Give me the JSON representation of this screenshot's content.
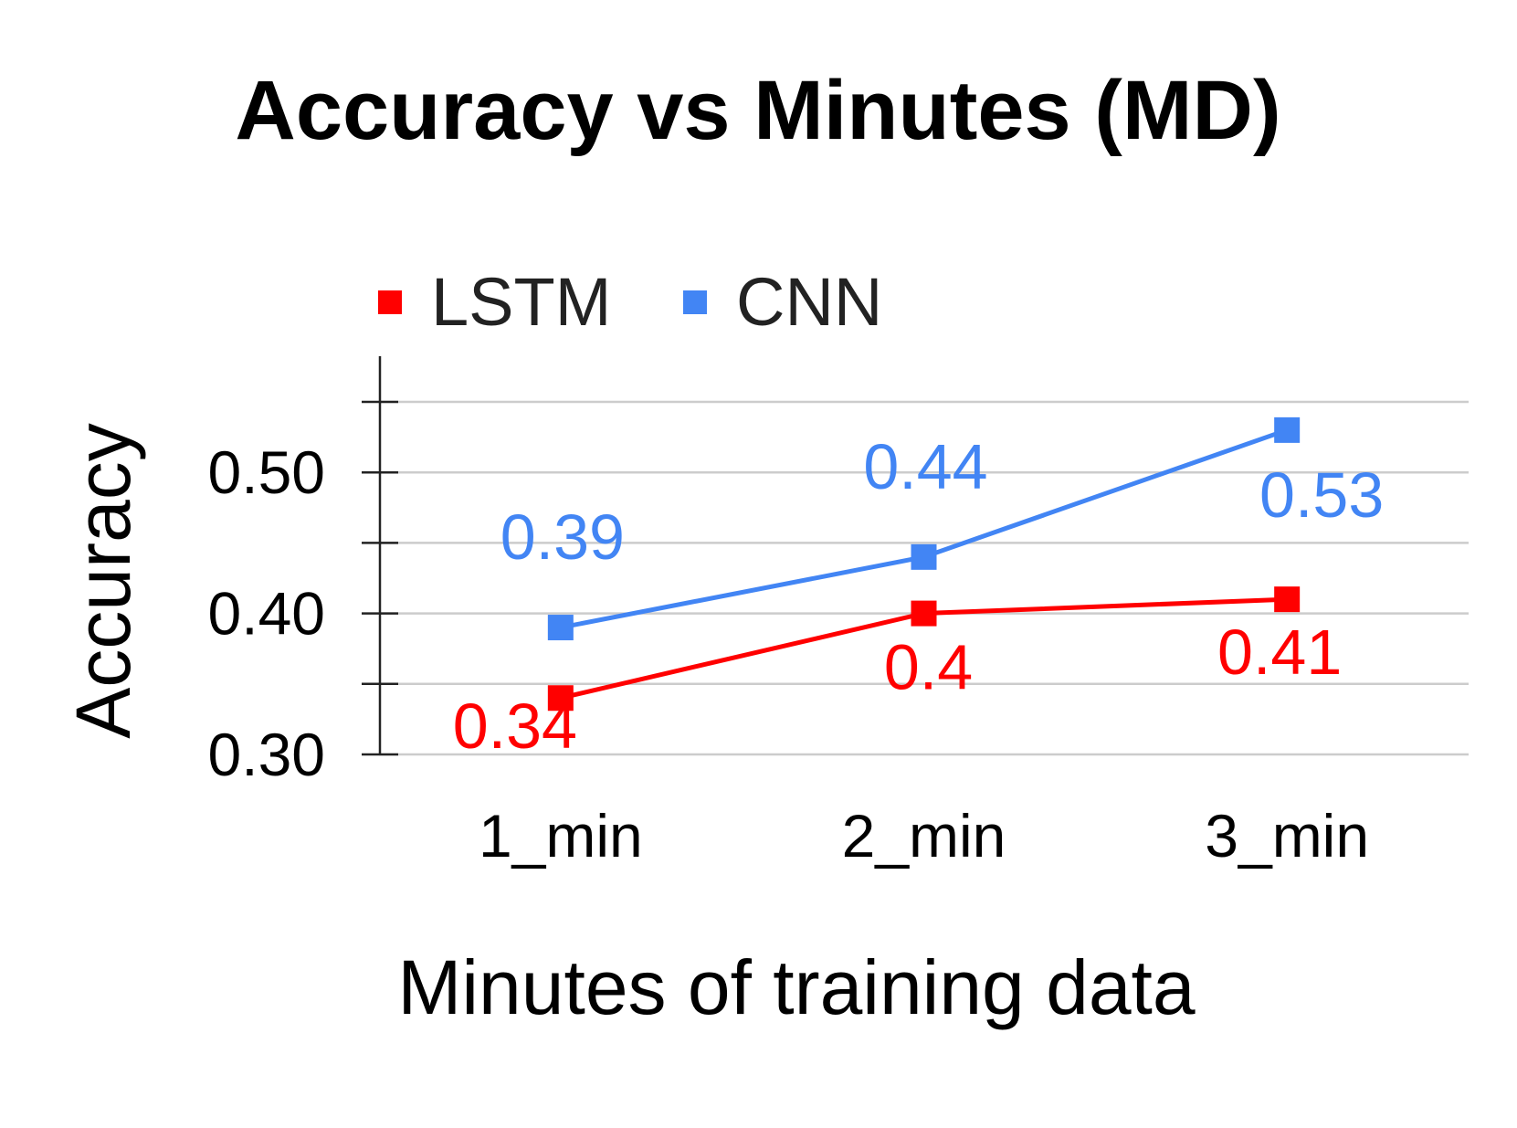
{
  "chart_data": {
    "type": "line",
    "title": "Accuracy vs Minutes (MD)",
    "xlabel": "Minutes of training data",
    "ylabel": "Accuracy",
    "categories": [
      "1_min",
      "2_min",
      "3_min"
    ],
    "ylim": [
      0.3,
      0.55
    ],
    "yticks": [
      0.3,
      0.35,
      0.4,
      0.45,
      0.5,
      0.55
    ],
    "ytick_labels": [
      "0.30",
      "",
      "0.40",
      "",
      "0.50",
      ""
    ],
    "grid": true,
    "legend_position": "top-left",
    "series": [
      {
        "name": "LSTM",
        "color": "#ff0000",
        "values": [
          0.34,
          0.4,
          0.41
        ],
        "labels": [
          "0.34",
          "0.4",
          "0.41"
        ]
      },
      {
        "name": "CNN",
        "color": "#4285f4",
        "values": [
          0.39,
          0.44,
          0.53
        ],
        "labels": [
          "0.39",
          "0.44",
          "0.53"
        ]
      }
    ]
  }
}
